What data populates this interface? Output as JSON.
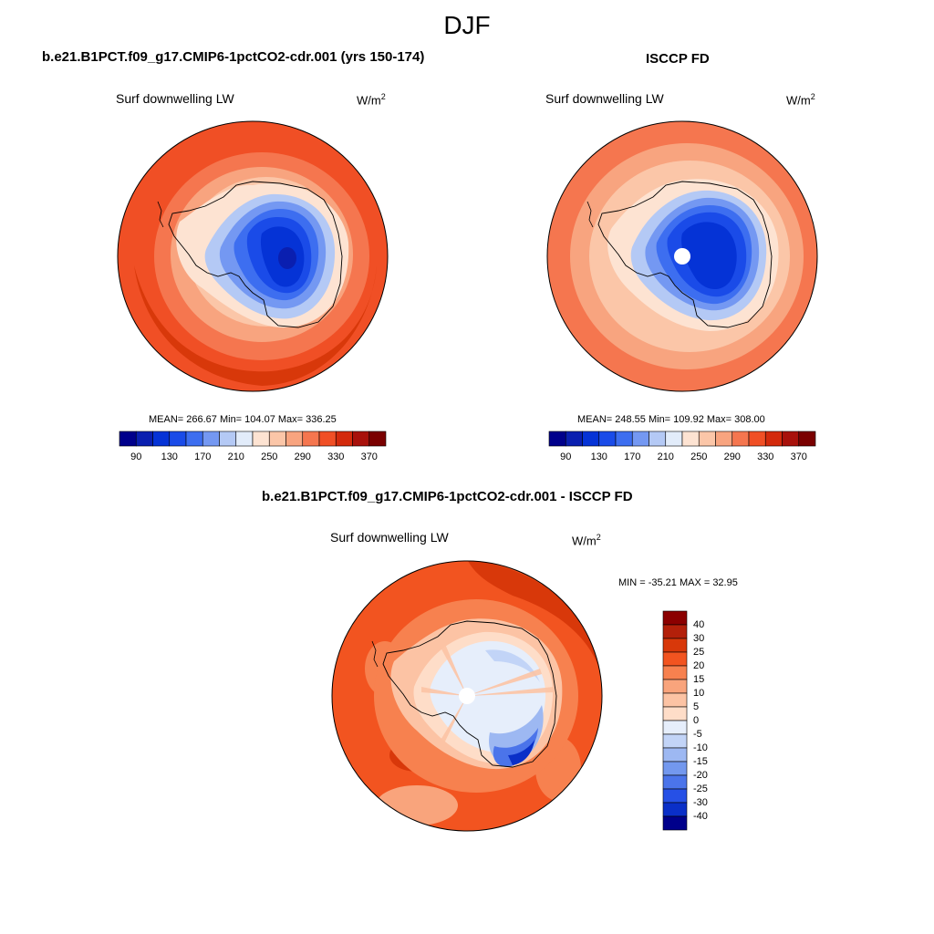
{
  "season": "DJF",
  "panels": [
    {
      "title": "b.e21.B1PCT.f09_g17.CMIP6-1pctCO2-cdr.001 (yrs 150-174)",
      "subtitle": "Surf downwelling LW",
      "units": "W/m",
      "units_exp": "2",
      "stats": "MEAN= 266.67  Min= 104.07  Max= 336.25"
    },
    {
      "title": "ISCCP FD",
      "subtitle": "Surf downwelling LW",
      "units": "W/m",
      "units_exp": "2",
      "stats": "MEAN= 248.55  Min= 109.92  Max= 308.00"
    },
    {
      "title": "b.e21.B1PCT.f09_g17.CMIP6-1pctCO2-cdr.001 - ISCCP FD",
      "subtitle": "Surf downwelling LW",
      "units": "W/m",
      "units_exp": "2",
      "stats": "MIN = -35.21 MAX =  32.95"
    }
  ],
  "chart_data": [
    {
      "type": "heatmap",
      "projection": "south-polar-stereographic",
      "title": "b.e21.B1PCT.f09_g17.CMIP6-1pctCO2-cdr.001 (yrs 150-174)",
      "variable": "Surf downwelling LW",
      "units": "W/m^2",
      "mean": 266.67,
      "min": 104.07,
      "max": 336.25,
      "colorbar": {
        "levels": [
          90,
          110,
          130,
          150,
          170,
          190,
          210,
          230,
          250,
          270,
          290,
          310,
          330,
          350,
          370
        ],
        "tick_labels": [
          "90",
          "130",
          "170",
          "210",
          "250",
          "290",
          "330",
          "370"
        ],
        "colors": [
          "#00008b",
          "#0a1fb0",
          "#0533d6",
          "#1a4be8",
          "#3d6ef0",
          "#7498f2",
          "#b4c9f5",
          "#e2ecfa",
          "#fde3d2",
          "#fbc6a8",
          "#f8a47f",
          "#f5764f",
          "#f04f25",
          "#d32a0c",
          "#a8110b",
          "#7a0000"
        ]
      }
    },
    {
      "type": "heatmap",
      "projection": "south-polar-stereographic",
      "title": "ISCCP FD",
      "variable": "Surf downwelling LW",
      "units": "W/m^2",
      "mean": 248.55,
      "min": 109.92,
      "max": 308.0,
      "colorbar": {
        "levels": [
          90,
          110,
          130,
          150,
          170,
          190,
          210,
          230,
          250,
          270,
          290,
          310,
          330,
          350,
          370
        ],
        "tick_labels": [
          "90",
          "130",
          "170",
          "210",
          "250",
          "290",
          "330",
          "370"
        ],
        "colors": [
          "#00008b",
          "#0a1fb0",
          "#0533d6",
          "#1a4be8",
          "#3d6ef0",
          "#7498f2",
          "#b4c9f5",
          "#e2ecfa",
          "#fde3d2",
          "#fbc6a8",
          "#f8a47f",
          "#f5764f",
          "#f04f25",
          "#d32a0c",
          "#a8110b",
          "#7a0000"
        ]
      }
    },
    {
      "type": "heatmap",
      "projection": "south-polar-stereographic",
      "title": "b.e21.B1PCT.f09_g17.CMIP6-1pctCO2-cdr.001 - ISCCP FD",
      "variable": "Surf downwelling LW",
      "units": "W/m^2",
      "min": -35.21,
      "max": 32.95,
      "colorbar": {
        "levels": [
          -40,
          -30,
          -25,
          -20,
          -15,
          -10,
          -5,
          0,
          5,
          10,
          15,
          20,
          25,
          30,
          40
        ],
        "tick_labels": [
          "40",
          "30",
          "25",
          "20",
          "15",
          "10",
          "5",
          "0",
          "-5",
          "-10",
          "-15",
          "-20",
          "-25",
          "-30",
          "-40"
        ],
        "colors_top_to_bottom": [
          "#8b0000",
          "#b3200a",
          "#d8380a",
          "#f25420",
          "#f7814f",
          "#f9a47c",
          "#fcc3a4",
          "#feddc8",
          "#e6eefb",
          "#c2d4f7",
          "#9db8f2",
          "#7398ee",
          "#4b74ea",
          "#2650e6",
          "#0a2fc8",
          "#00008b"
        ]
      }
    }
  ]
}
